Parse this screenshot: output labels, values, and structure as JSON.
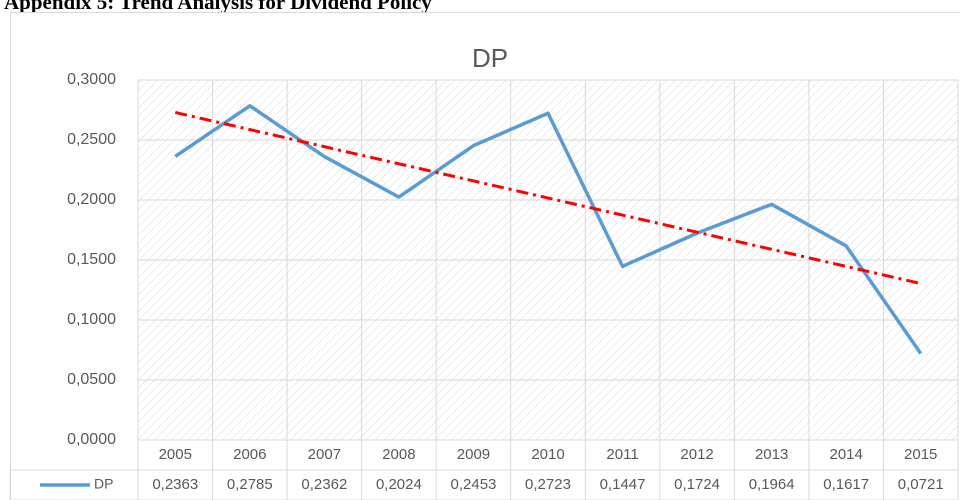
{
  "header": {
    "title": "Appendix 5: Trend Analysis for Dividend Policy"
  },
  "chart_data": {
    "type": "line",
    "title": "DP",
    "categories": [
      "2005",
      "2006",
      "2007",
      "2008",
      "2009",
      "2010",
      "2011",
      "2012",
      "2013",
      "2014",
      "2015"
    ],
    "series": [
      {
        "name": "DP",
        "color": "#5b9bd5",
        "values": [
          0.2363,
          0.2785,
          0.2362,
          0.2024,
          0.2453,
          0.2723,
          0.1447,
          0.1724,
          0.1964,
          0.1617,
          0.0721
        ],
        "value_labels": [
          "0,2363",
          "0,2785",
          "0,2362",
          "0,2024",
          "0,2453",
          "0,2723",
          "0,1447",
          "0,1724",
          "0,1964",
          "0,1617",
          "0,0721"
        ]
      }
    ],
    "trendline": {
      "kind": "linear",
      "color": "#ff0000"
    },
    "ylim": [
      0,
      0.3
    ],
    "yticks": [
      {
        "value": 0,
        "label": "0,0000"
      },
      {
        "value": 0.05,
        "label": "0,0500"
      },
      {
        "value": 0.1,
        "label": "0,1000"
      },
      {
        "value": 0.15,
        "label": "0,1500"
      },
      {
        "value": 0.2,
        "label": "0,2000"
      },
      {
        "value": 0.25,
        "label": "0,2500"
      },
      {
        "value": 0.3,
        "label": "0,3000"
      }
    ],
    "grid": true,
    "data_table": true
  }
}
